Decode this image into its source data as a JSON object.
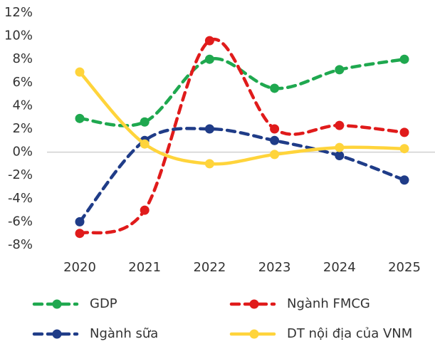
{
  "chart_data": {
    "type": "line",
    "categories": [
      "2020",
      "2021",
      "2022",
      "2023",
      "2024",
      "2025"
    ],
    "series": [
      {
        "name": "GDP",
        "color": "#1fa84f",
        "dashed": true,
        "values": [
          2.9,
          2.6,
          8.0,
          5.5,
          7.1,
          8.0
        ]
      },
      {
        "name": "Ngành FMCG",
        "color": "#e01b1b",
        "dashed": true,
        "values": [
          -7.0,
          -5.0,
          9.6,
          2.0,
          2.3,
          1.7
        ]
      },
      {
        "name": "Ngành sữa",
        "color": "#1f3c88",
        "dashed": true,
        "values": [
          -6.0,
          1.0,
          2.0,
          1.0,
          -0.3,
          -2.4
        ]
      },
      {
        "name": "DT nội địa của VNM",
        "color": "#ffd43b",
        "dashed": false,
        "values": [
          6.9,
          0.7,
          -1.0,
          -0.2,
          0.4,
          0.3
        ]
      }
    ],
    "ylim": [
      -8,
      12
    ],
    "yticks": [
      {
        "value": -8,
        "label": "-8%"
      },
      {
        "value": -6,
        "label": "-6%"
      },
      {
        "value": -4,
        "label": "-4%"
      },
      {
        "value": -2,
        "label": "-2%"
      },
      {
        "value": 0,
        "label": "0%"
      },
      {
        "value": 2,
        "label": "2%"
      },
      {
        "value": 4,
        "label": "4%"
      },
      {
        "value": 6,
        "label": "6%"
      },
      {
        "value": 8,
        "label": "8%"
      },
      {
        "value": 10,
        "label": "10%"
      },
      {
        "value": 12,
        "label": "12%"
      }
    ],
    "legend": "bottom"
  }
}
